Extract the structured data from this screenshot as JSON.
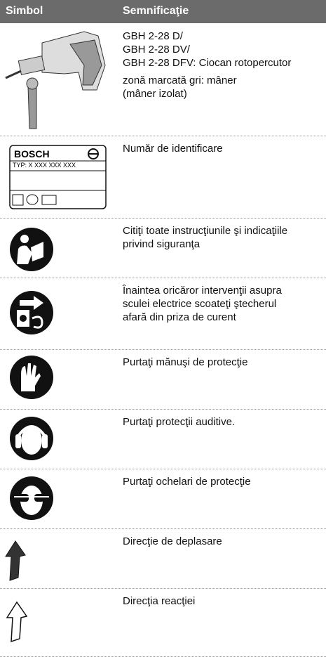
{
  "header": {
    "cells": [
      "Simbol",
      "Semnificaţie"
    ]
  },
  "rows": [
    {
      "paragraphs": [
        [
          "GBH 2-28 D/",
          "GBH 2-28 DV/",
          "GBH 2-28 DFV: Ciocan rotopercutor"
        ],
        [
          "zonă marcată gri: mâner",
          "(mâner izolat)"
        ]
      ]
    },
    {
      "symbol_text": [
        "BOSCH",
        "TYP:  X XXX XXX XXX"
      ],
      "paragraphs": [
        [
          "Număr de identificare"
        ]
      ]
    },
    {
      "paragraphs": [
        [
          "Citiţi toate instrucţiunile şi indicaţiile",
          "privind siguranţa"
        ]
      ]
    },
    {
      "paragraphs": [
        [
          "Înaintea oricăror intervenţii asupra",
          "sculei electrice scoateţi ştecherul",
          "afară din priza de curent"
        ]
      ]
    },
    {
      "paragraphs": [
        [
          "Purtaţi mănuşi de protecţie"
        ]
      ]
    },
    {
      "paragraphs": [
        [
          "Purtaţi protecţii auditive."
        ]
      ]
    },
    {
      "paragraphs": [
        [
          "Purtaţi ochelari de protecţie"
        ]
      ]
    },
    {
      "paragraphs": [
        [
          "Direcţie de deplasare"
        ]
      ]
    },
    {
      "paragraphs": [
        [
          "Direcţia reacţiei"
        ]
      ]
    }
  ]
}
